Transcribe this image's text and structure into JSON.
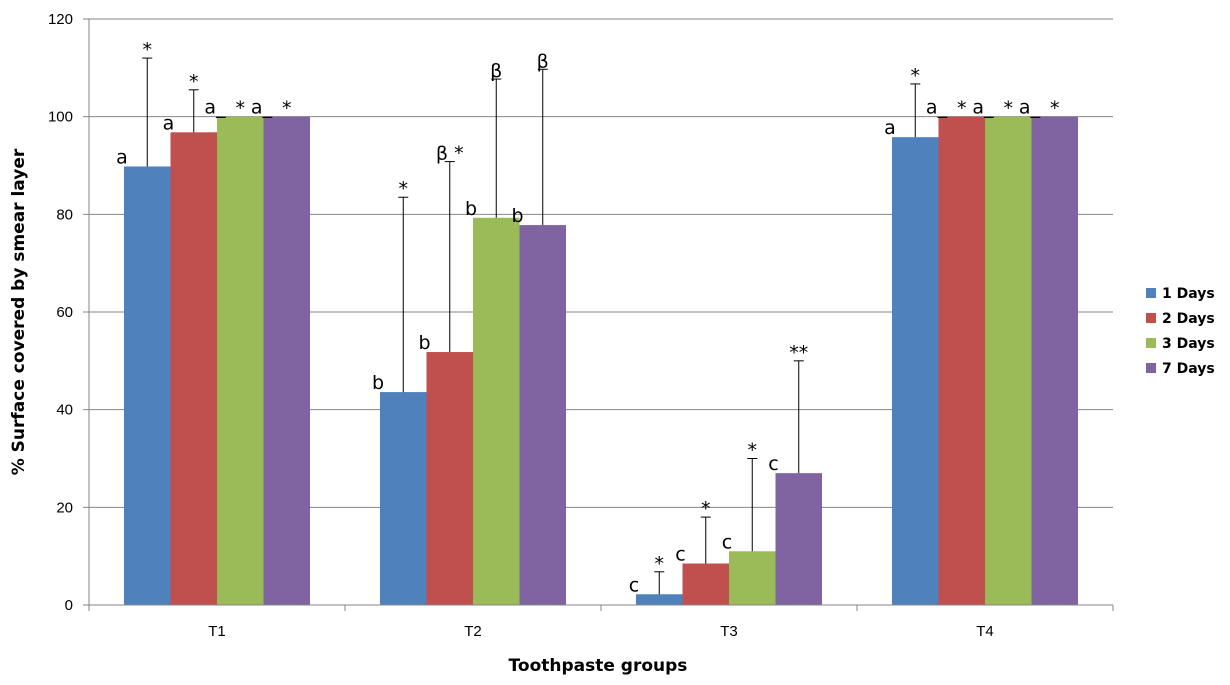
{
  "chart_data": {
    "type": "bar",
    "title": "",
    "xlabel": "Toothpaste groups",
    "ylabel": "% Surface covered by smear layer",
    "ylim": [
      0,
      120
    ],
    "yticks": [
      "0",
      "20",
      "40",
      "60",
      "80",
      "100",
      "120"
    ],
    "grid": true,
    "legend_position": "right",
    "categories": [
      "T1",
      "T2",
      "T3",
      "T4"
    ],
    "series": [
      {
        "name": "1 Days",
        "color": "#4F81BD",
        "values": [
          89.8,
          43.6,
          2.2,
          95.8
        ],
        "error_upper": [
          112.0,
          83.5,
          6.8,
          106.7
        ],
        "letters": [
          "a",
          "b",
          "c",
          "a"
        ],
        "marks": [
          "*",
          "*",
          "*",
          "*"
        ]
      },
      {
        "name": "2 Days",
        "color": "#C0504D",
        "values": [
          96.8,
          51.8,
          8.5,
          100.0
        ],
        "error_upper": [
          105.5,
          90.8,
          18.0,
          100.0
        ],
        "letters": [
          "a",
          "b",
          "c",
          "a_"
        ],
        "marks": [
          "*",
          "β *",
          "*",
          "*"
        ]
      },
      {
        "name": "3 Days",
        "color": "#9BBB59",
        "values": [
          100.0,
          79.3,
          11.0,
          100.0
        ],
        "error_upper": [
          100.0,
          107.7,
          30.0,
          100.0
        ],
        "letters": [
          "a_",
          "b",
          "c",
          "a_"
        ],
        "marks": [
          "*",
          "β",
          "*",
          "*"
        ]
      },
      {
        "name": "7 Days",
        "color": "#8064A2",
        "values": [
          100.0,
          77.8,
          27.0,
          100.0
        ],
        "error_upper": [
          100.0,
          109.7,
          50.0,
          100.0
        ],
        "letters": [
          "a_",
          "b",
          "c",
          "a_"
        ],
        "marks": [
          "*",
          "β",
          "**",
          "*"
        ]
      }
    ]
  }
}
